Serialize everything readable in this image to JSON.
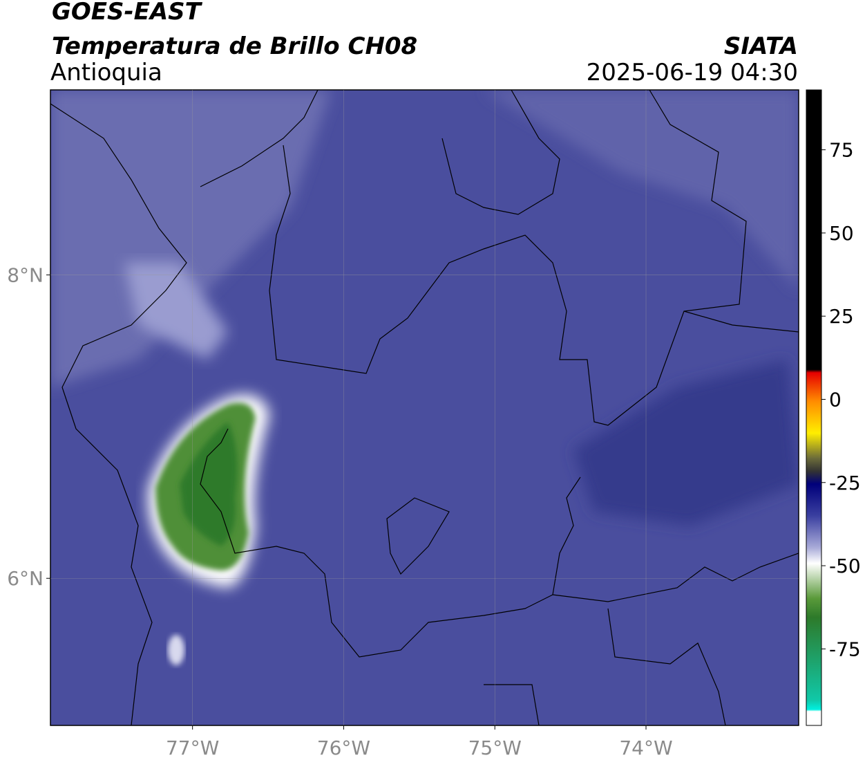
{
  "header": {
    "title": "GOES-EAST",
    "subtitle": "Temperatura de Brillo CH08",
    "region": "Antioquia",
    "source": "SIATA",
    "datetime": "2025-06-19 04:30"
  },
  "map": {
    "lonlim": [
      -77.94,
      -72.99
    ],
    "latlim": [
      5.03,
      9.22
    ],
    "lonticks": [
      {
        "value": -77,
        "label": "77°W"
      },
      {
        "value": -76,
        "label": "76°W"
      },
      {
        "value": -75,
        "label": "75°W"
      },
      {
        "value": -74,
        "label": "74°W"
      }
    ],
    "latticks": [
      {
        "value": 6,
        "label": "6°N"
      },
      {
        "value": 8,
        "label": "8°N"
      }
    ],
    "grid": true
  },
  "colorbar": {
    "lim": [
      -98,
      93
    ],
    "ticks": [
      -75,
      -50,
      -25,
      0,
      25,
      50,
      75
    ]
  }
}
